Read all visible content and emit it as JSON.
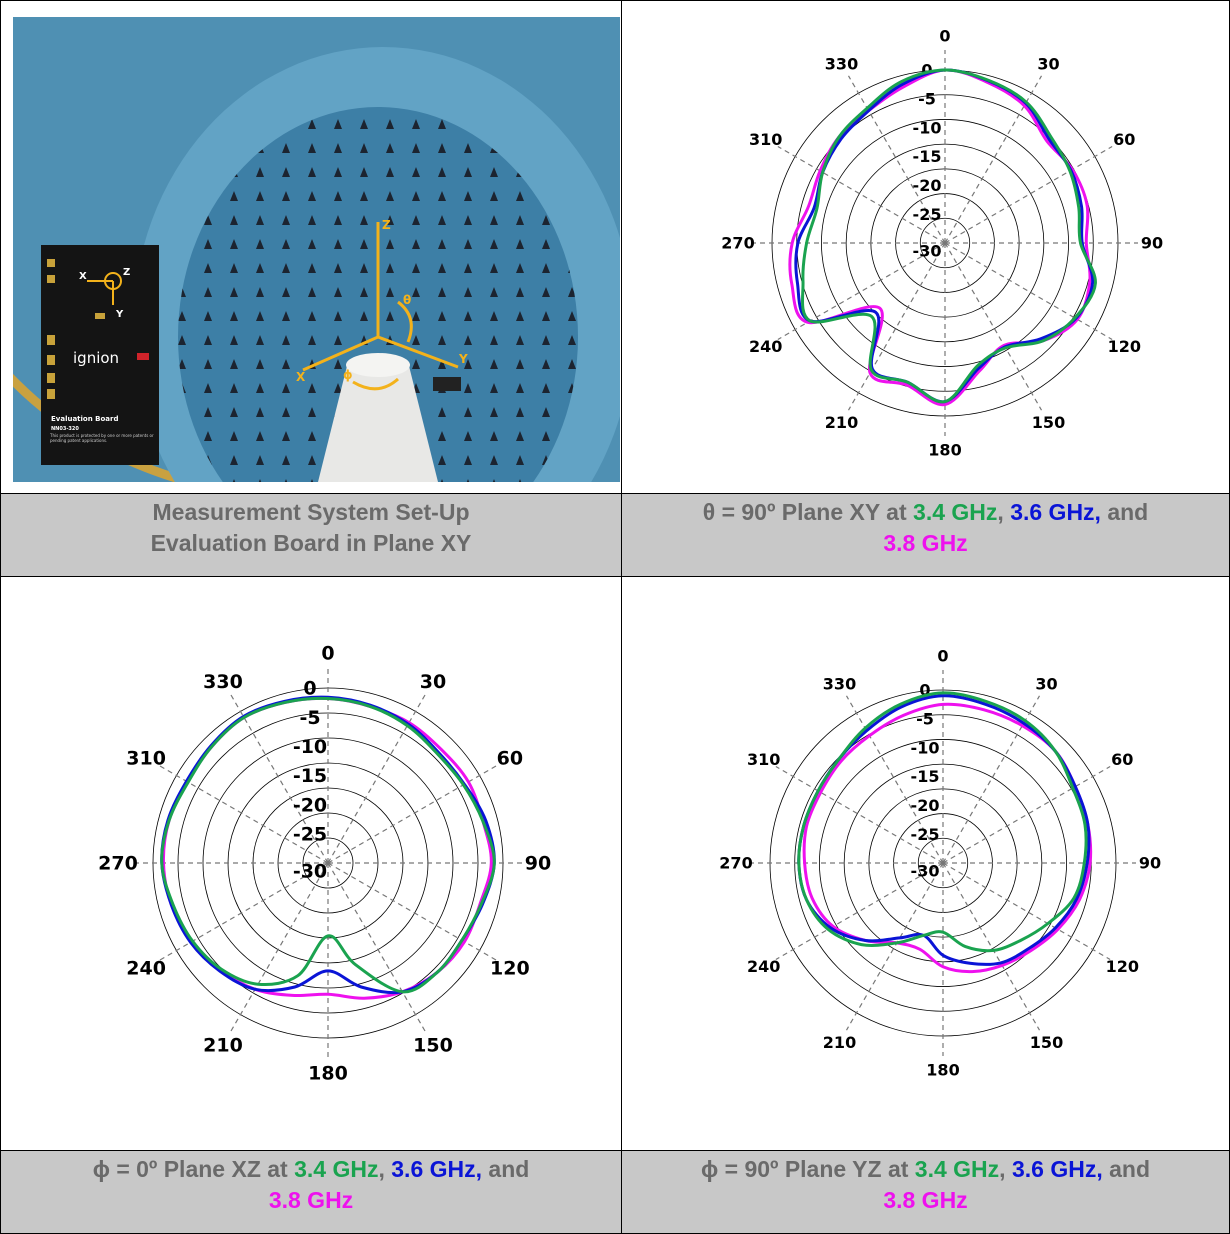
{
  "panel_photo": {
    "board_brand": "ignion",
    "board_title": "Evaluation Board",
    "board_code": "NN03-320",
    "board_desc": "This product is protected by one or more patents or pending patent applications.",
    "axes": {
      "x": "X",
      "y": "Y",
      "z": "Z",
      "theta": "θ",
      "phi": "ϕ"
    },
    "caption_line1": "Measurement System Set-Up",
    "caption_line2": "Evaluation Board in Plane XY"
  },
  "captions": {
    "xy": {
      "prefix": "θ = 90º Plane XY at ",
      "f1": "3.4 GHz",
      "sep1": ", ",
      "f2": "3.6 GHz,",
      "and": " and",
      "f3": "3.8 GHz"
    },
    "xz": {
      "prefix": "ϕ = 0º Plane XZ at ",
      "f1": "3.4 GHz",
      "sep1": ", ",
      "f2": "3.6 GHz,",
      "and": " and",
      "f3": "3.8 GHz"
    },
    "yz": {
      "prefix": "ϕ = 90º Plane YZ at ",
      "f1": "3.4 GHz",
      "sep1": ", ",
      "f2": "3.6 GHz,",
      "and": " and",
      "f3": "3.8 GHz"
    }
  },
  "colors": {
    "f34": "#1aa34f",
    "f36": "#0a14d6",
    "f38": "#ee11ee",
    "caption_bg": "#c8c8c8",
    "caption_text": "#6a6a6a",
    "photo_bg": "#4f90b3"
  },
  "chart_data": [
    {
      "type": "polar",
      "angle_labels": [
        "0",
        "30",
        "60",
        "90",
        "120",
        "150",
        "180",
        "210",
        "240",
        "270",
        "310",
        "330"
      ],
      "radial_labels": [
        "0",
        "-5",
        "-10",
        "-15",
        "-20",
        "-25",
        "-30"
      ],
      "rlim": [
        -30,
        0
      ],
      "angles_deg": [
        0,
        15,
        30,
        45,
        60,
        75,
        90,
        105,
        120,
        135,
        150,
        165,
        180,
        195,
        210,
        225,
        240,
        255,
        270,
        285,
        300,
        315,
        330,
        345
      ],
      "series": [
        {
          "name": "3.4 GHz",
          "color": "#1aa34f",
          "values": [
            0,
            -0.8,
            -1.8,
            -4,
            -5,
            -6,
            -6.5,
            -3,
            -4,
            -6,
            -9,
            -8,
            -2.5,
            -5,
            -4.5,
            -12,
            -3,
            -4.5,
            -6,
            -7,
            -5.5,
            -4,
            -3,
            -1
          ]
        },
        {
          "name": "3.6 GHz",
          "color": "#0a14d6",
          "values": [
            0,
            -0.9,
            -2,
            -4.5,
            -4.8,
            -5.5,
            -6.2,
            -3.5,
            -3.8,
            -6.5,
            -9.2,
            -7.5,
            -2.5,
            -5,
            -4.8,
            -13,
            -3,
            -3.5,
            -4.5,
            -6.5,
            -5.5,
            -4.5,
            -3.5,
            -1.5
          ]
        },
        {
          "name": "3.8 GHz",
          "color": "#ee11ee",
          "values": [
            0,
            -1.2,
            -2.5,
            -5,
            -4.5,
            -4.5,
            -5.5,
            -4,
            -3.5,
            -6,
            -9.5,
            -7,
            -2,
            -4.5,
            -4,
            -14,
            -2.5,
            -2.5,
            -3.5,
            -5.5,
            -5,
            -4,
            -3.5,
            -2
          ]
        }
      ]
    },
    {
      "type": "polar",
      "angle_labels": [
        "0",
        "30",
        "60",
        "90",
        "120",
        "150",
        "180",
        "210",
        "240",
        "270",
        "310",
        "330"
      ],
      "radial_labels": [
        "0",
        "-5",
        "-10",
        "-15",
        "-20",
        "-25",
        "-30"
      ],
      "rlim": [
        -30,
        0
      ],
      "angles_deg": [
        0,
        15,
        30,
        45,
        60,
        75,
        90,
        105,
        120,
        135,
        150,
        165,
        180,
        195,
        210,
        225,
        240,
        255,
        270,
        285,
        300,
        315,
        330,
        345
      ],
      "series": [
        {
          "name": "3.4 GHz",
          "color": "#1aa34f",
          "values": [
            -1.8,
            -2.2,
            -2.8,
            -3.5,
            -3.2,
            -2.5,
            -1.5,
            -2.8,
            -3.5,
            -3.5,
            -4.5,
            -12,
            -17.5,
            -10,
            -6,
            -4.2,
            -3.2,
            -2.5,
            -1.5,
            -1.8,
            -2.3,
            -1.8,
            -1.2,
            -1.5
          ]
        },
        {
          "name": "3.6 GHz",
          "color": "#0a14d6",
          "values": [
            -1.6,
            -2,
            -2.5,
            -3.2,
            -3,
            -2,
            -1.5,
            -2.6,
            -3.5,
            -3.5,
            -4.5,
            -8,
            -11.5,
            -8,
            -5,
            -3.8,
            -2.8,
            -2.2,
            -1.5,
            -1.6,
            -2,
            -1.6,
            -1,
            -1.3
          ]
        },
        {
          "name": "3.8 GHz",
          "color": "#ee11ee",
          "values": [
            -1.8,
            -2.2,
            -2.2,
            -2.5,
            -2.2,
            -2.5,
            -2,
            -3,
            -3,
            -3.5,
            -4.5,
            -6,
            -7.5,
            -6.5,
            -5,
            -4,
            -3,
            -2.2,
            -1.8,
            -1.8,
            -2.2,
            -1.8,
            -1.2,
            -1.5
          ]
        }
      ]
    },
    {
      "type": "polar",
      "angle_labels": [
        "0",
        "30",
        "60",
        "90",
        "120",
        "150",
        "180",
        "210",
        "240",
        "270",
        "310",
        "330"
      ],
      "radial_labels": [
        "0",
        "-5",
        "-10",
        "-15",
        "-20",
        "-25",
        "-30"
      ],
      "rlim": [
        -30,
        0
      ],
      "angles_deg": [
        0,
        15,
        30,
        45,
        60,
        75,
        90,
        105,
        120,
        135,
        150,
        165,
        180,
        195,
        210,
        225,
        240,
        255,
        270,
        285,
        300,
        315,
        330,
        345
      ],
      "series": [
        {
          "name": "3.4 GHz",
          "color": "#1aa34f",
          "values": [
            -0.5,
            -1,
            -1.5,
            -2.5,
            -4,
            -4.5,
            -5.5,
            -6.5,
            -9,
            -11,
            -12.5,
            -15,
            -18,
            -17,
            -14,
            -10,
            -7,
            -5.5,
            -5,
            -5,
            -5,
            -4.5,
            -3,
            -1.5
          ]
        },
        {
          "name": "3.6 GHz",
          "color": "#0a14d6",
          "values": [
            -1,
            -1.5,
            -2,
            -2.5,
            -3.5,
            -4,
            -5,
            -6,
            -7.5,
            -9,
            -10,
            -12,
            -14,
            -17,
            -15,
            -11,
            -7.5,
            -5.5,
            -5,
            -5,
            -5,
            -4.5,
            -3.5,
            -2
          ]
        },
        {
          "name": "3.8 GHz",
          "color": "#ee11ee",
          "values": [
            -2.5,
            -2.5,
            -2.5,
            -2.5,
            -3.5,
            -4,
            -4.5,
            -5.5,
            -7,
            -8.5,
            -9.5,
            -10.5,
            -12,
            -14.5,
            -14,
            -11,
            -8,
            -6.5,
            -6,
            -5.5,
            -5.5,
            -5,
            -4.5,
            -3.5
          ]
        }
      ]
    }
  ]
}
